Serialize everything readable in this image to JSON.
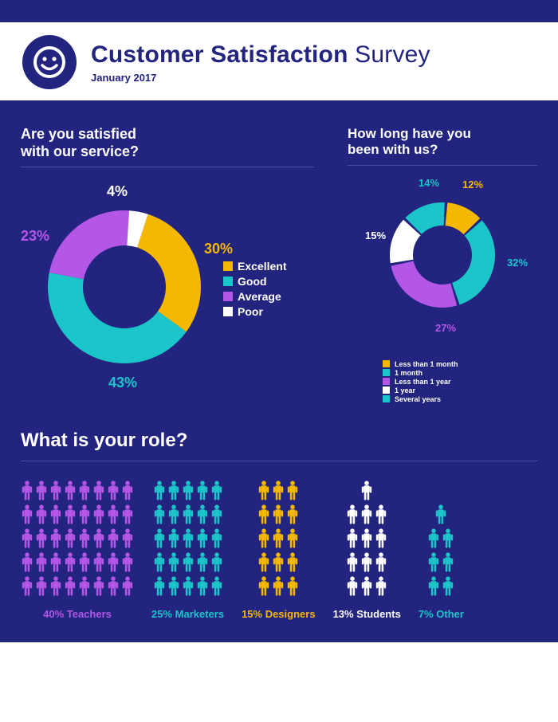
{
  "colors": {
    "bg": "#22247f",
    "yellow": "#f5b800",
    "teal": "#1cc5c9",
    "purple": "#b456e6",
    "white": "#ffffff",
    "divider": "#4a4ca0"
  },
  "header": {
    "title_bold": "Customer Satisfaction",
    "title_light": "Survey",
    "subtitle": "January 2017"
  },
  "satisfaction": {
    "question": "Are you satisfied\nwith our service?",
    "type": "donut",
    "slices": [
      {
        "label": "Excellent",
        "value": 30,
        "color": "#f5b800"
      },
      {
        "label": "Good",
        "value": 43,
        "color": "#1cc5c9"
      },
      {
        "label": "Average",
        "value": 23,
        "color": "#b456e6"
      },
      {
        "label": "Poor",
        "value": 4,
        "color": "#ffffff"
      }
    ],
    "pct_labels": {
      "excellent": "30%",
      "good": "43%",
      "average": "23%",
      "poor": "4%"
    },
    "label_fontsize": 18,
    "donut_outer_r": 96,
    "donut_inner_r": 52,
    "start_angle_deg": -72,
    "gap_deg": 0
  },
  "tenure": {
    "question": "How long have you\nbeen with us?",
    "type": "donut",
    "slices": [
      {
        "label": "Less than 1 month",
        "value": 12,
        "color": "#f5b800"
      },
      {
        "label": "1 month",
        "value": 32,
        "color": "#1cc5c9"
      },
      {
        "label": "Less than 1 year",
        "value": 27,
        "color": "#b456e6"
      },
      {
        "label": "1 year",
        "value": 15,
        "color": "#ffffff"
      },
      {
        "label": "Several years",
        "value": 14,
        "color": "#1cc5c9"
      }
    ],
    "pct_labels": {
      "p12": "12%",
      "p32": "32%",
      "p27": "27%",
      "p15": "15%",
      "p14": "14%"
    },
    "label_fontsize": 13,
    "donut_outer_r": 66,
    "donut_inner_r": 37,
    "start_angle_deg": -86,
    "gap_deg": 3
  },
  "roles": {
    "question": "What is your role?",
    "items": [
      {
        "label": "40% Teachers",
        "pct": 40,
        "count": 40,
        "cols": 8,
        "color": "#b456e6"
      },
      {
        "label": "25% Marketers",
        "pct": 25,
        "count": 25,
        "cols": 5,
        "color": "#1cc5c9"
      },
      {
        "label": "15% Designers",
        "pct": 15,
        "count": 15,
        "cols": 3,
        "color": "#f5b800"
      },
      {
        "label": "13% Students",
        "pct": 13,
        "count": 13,
        "cols": 3,
        "color": "#ffffff"
      },
      {
        "label": "7% Other",
        "pct": 7,
        "count": 7,
        "cols": 2,
        "color": "#1cc5c9"
      }
    ],
    "max_rows": 5,
    "label_fontsize": 13
  }
}
